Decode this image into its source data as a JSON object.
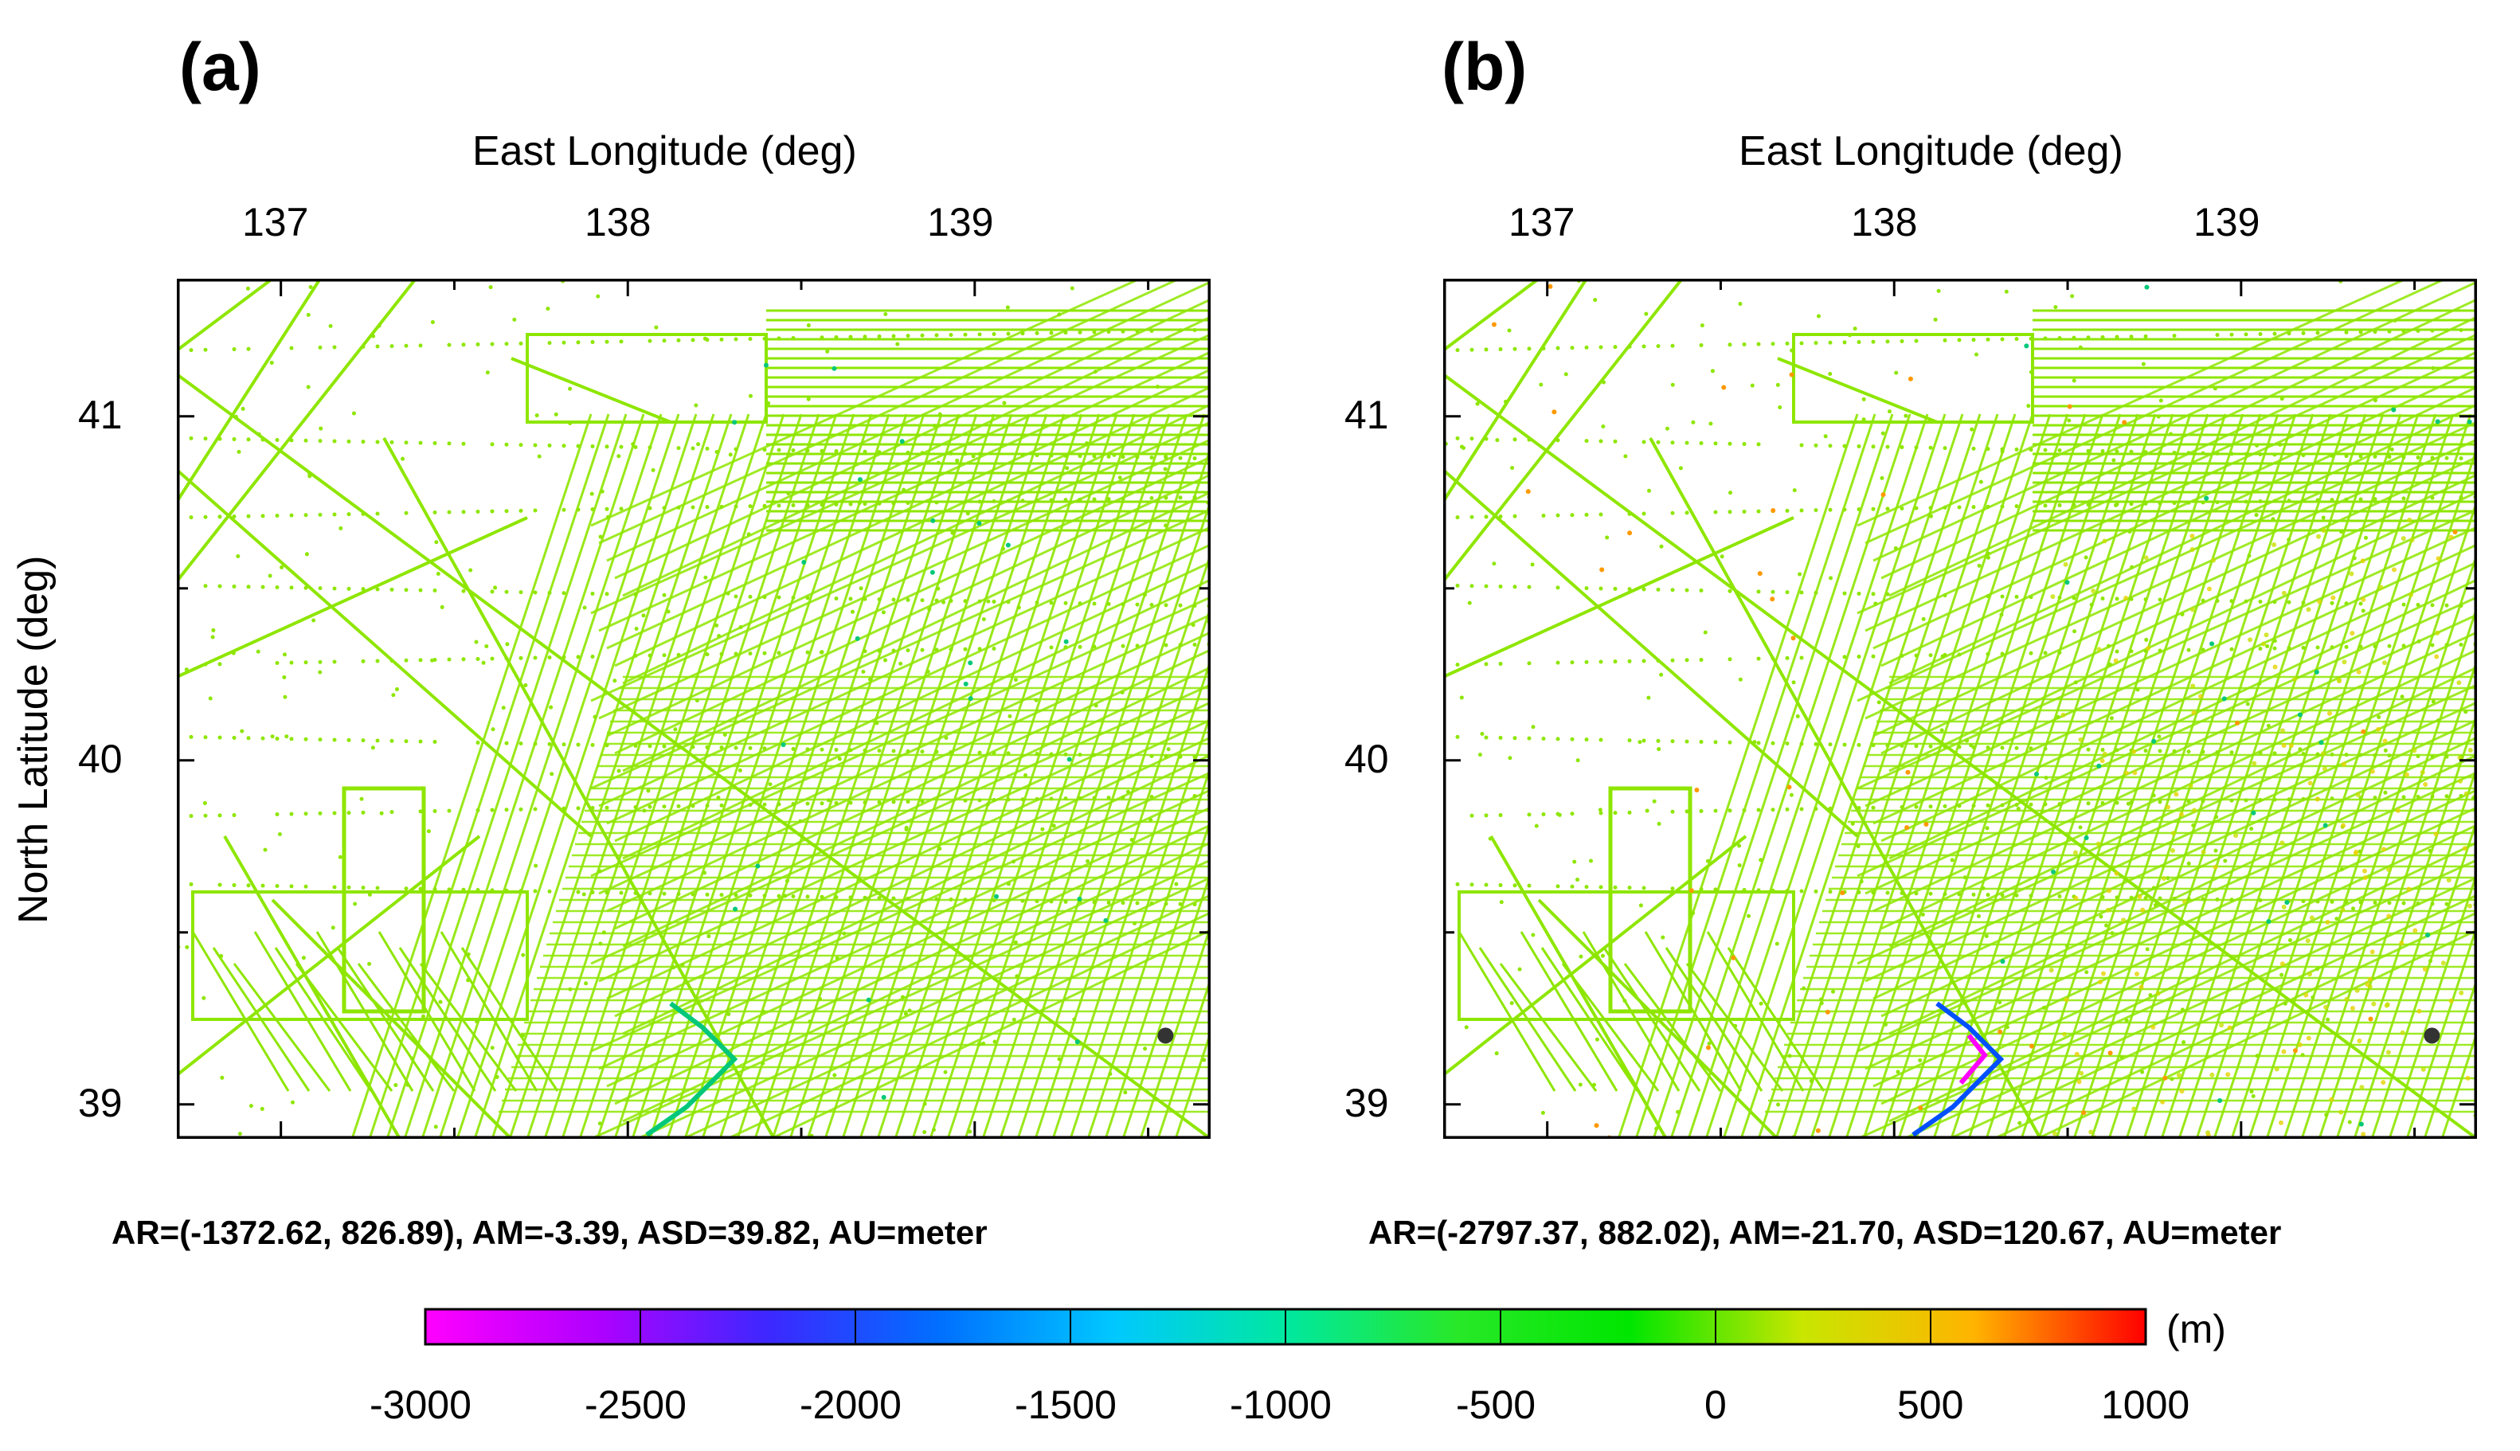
{
  "panels": [
    {
      "id": "a",
      "label": "(a)",
      "top_axis_title": "East Longitude (deg)",
      "left_axis_title": "North Latitude (deg)",
      "x_ticks": [
        "137",
        "138",
        "139"
      ],
      "y_ticks": [
        "41",
        "40",
        "39"
      ],
      "stats": "AR=(-1372.62, 826.89), AM=-3.39, ASD=39.82, AU=meter"
    },
    {
      "id": "b",
      "label": "(b)",
      "top_axis_title": "East Longitude (deg)",
      "x_ticks": [
        "137",
        "138",
        "139"
      ],
      "y_ticks": [
        "41",
        "40",
        "39"
      ],
      "stats": "AR=(-2797.37, 882.02), AM=-21.70, ASD=120.67, AU=meter"
    }
  ],
  "map_extent": {
    "lon_range": [
      136.7,
      139.68
    ],
    "lat_range": [
      38.9,
      41.4
    ],
    "x_major_ticks": [
      137,
      138,
      139
    ],
    "y_major_ticks": [
      41,
      40,
      39
    ],
    "minor_ticks_lon": [
      137.5,
      138.5,
      139.5
    ],
    "minor_ticks_lat": [
      40.5,
      39.5
    ]
  },
  "colorbar": {
    "unit": "(m)",
    "min": -3000,
    "max": 1000,
    "tick_labels": [
      "-3000",
      "-2500",
      "-2000",
      "-1500",
      "-1000",
      "-500",
      "0",
      "500",
      "1000"
    ],
    "colors": [
      "#ff00ff",
      "#b000ff",
      "#3c28ff",
      "#0070ff",
      "#00c8ff",
      "#00e8a0",
      "#28e828",
      "#00e600",
      "#c8e600",
      "#ffb400",
      "#ff0000"
    ]
  },
  "track_colors": {
    "dominant": "#8ee600",
    "anomaly_low": "#0050ff",
    "anomaly_mid": "#00c87a",
    "anomaly_high": "#ff9900"
  }
}
